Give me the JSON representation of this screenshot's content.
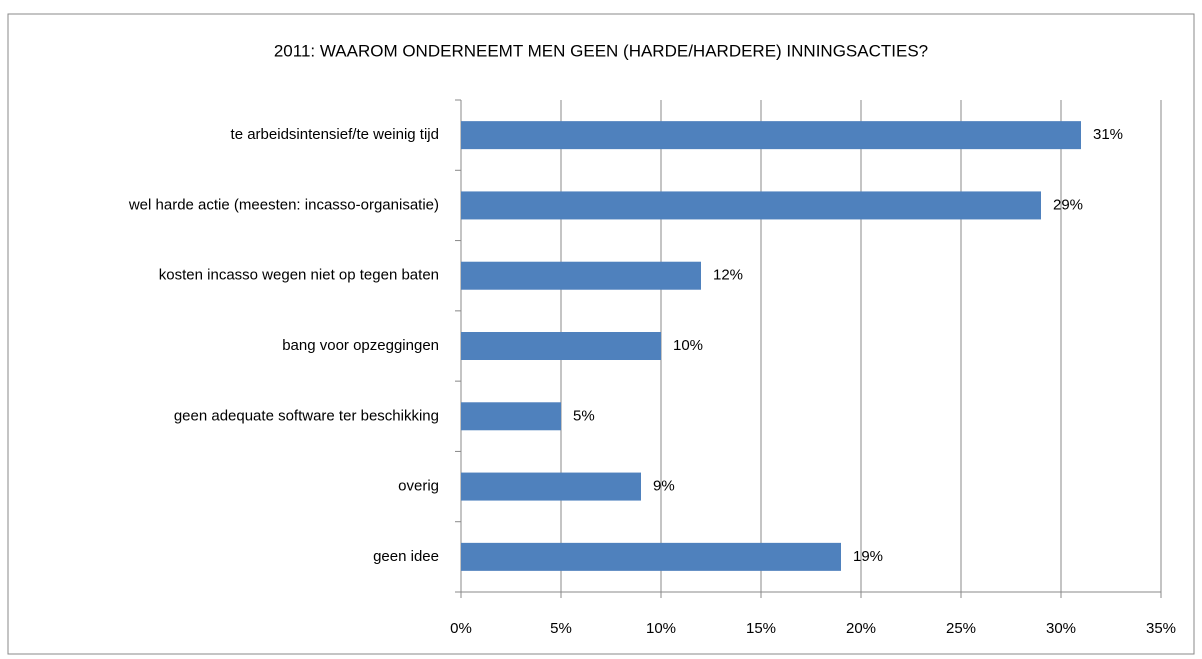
{
  "chart_data": {
    "type": "bar",
    "orientation": "horizontal",
    "title": "2011: WAAROM ONDERNEEMT MEN GEEN (HARDE/HARDERE) INNINGSACTIES?",
    "categories": [
      "te arbeidsintensief/te weinig tijd",
      "wel harde actie (meesten: incasso-organisatie)",
      "kosten incasso wegen niet op tegen baten",
      "bang voor opzeggingen",
      "geen adequate software ter beschikking",
      "overig",
      "geen idee"
    ],
    "values": [
      31,
      29,
      12,
      10,
      5,
      9,
      19
    ],
    "value_labels": [
      "31%",
      "29%",
      "12%",
      "10%",
      "5%",
      "9%",
      "19%"
    ],
    "color": "#4f81bd",
    "xlim": [
      0,
      35
    ],
    "xticks": [
      {
        "value": 0,
        "label": "0%"
      },
      {
        "value": 5,
        "label": "5%"
      },
      {
        "value": 10,
        "label": "10%"
      },
      {
        "value": 15,
        "label": "15%"
      },
      {
        "value": 20,
        "label": "20%"
      },
      {
        "value": 25,
        "label": "25%"
      },
      {
        "value": 30,
        "label": "30%"
      },
      {
        "value": 35,
        "label": "35%"
      }
    ],
    "grid": true
  }
}
